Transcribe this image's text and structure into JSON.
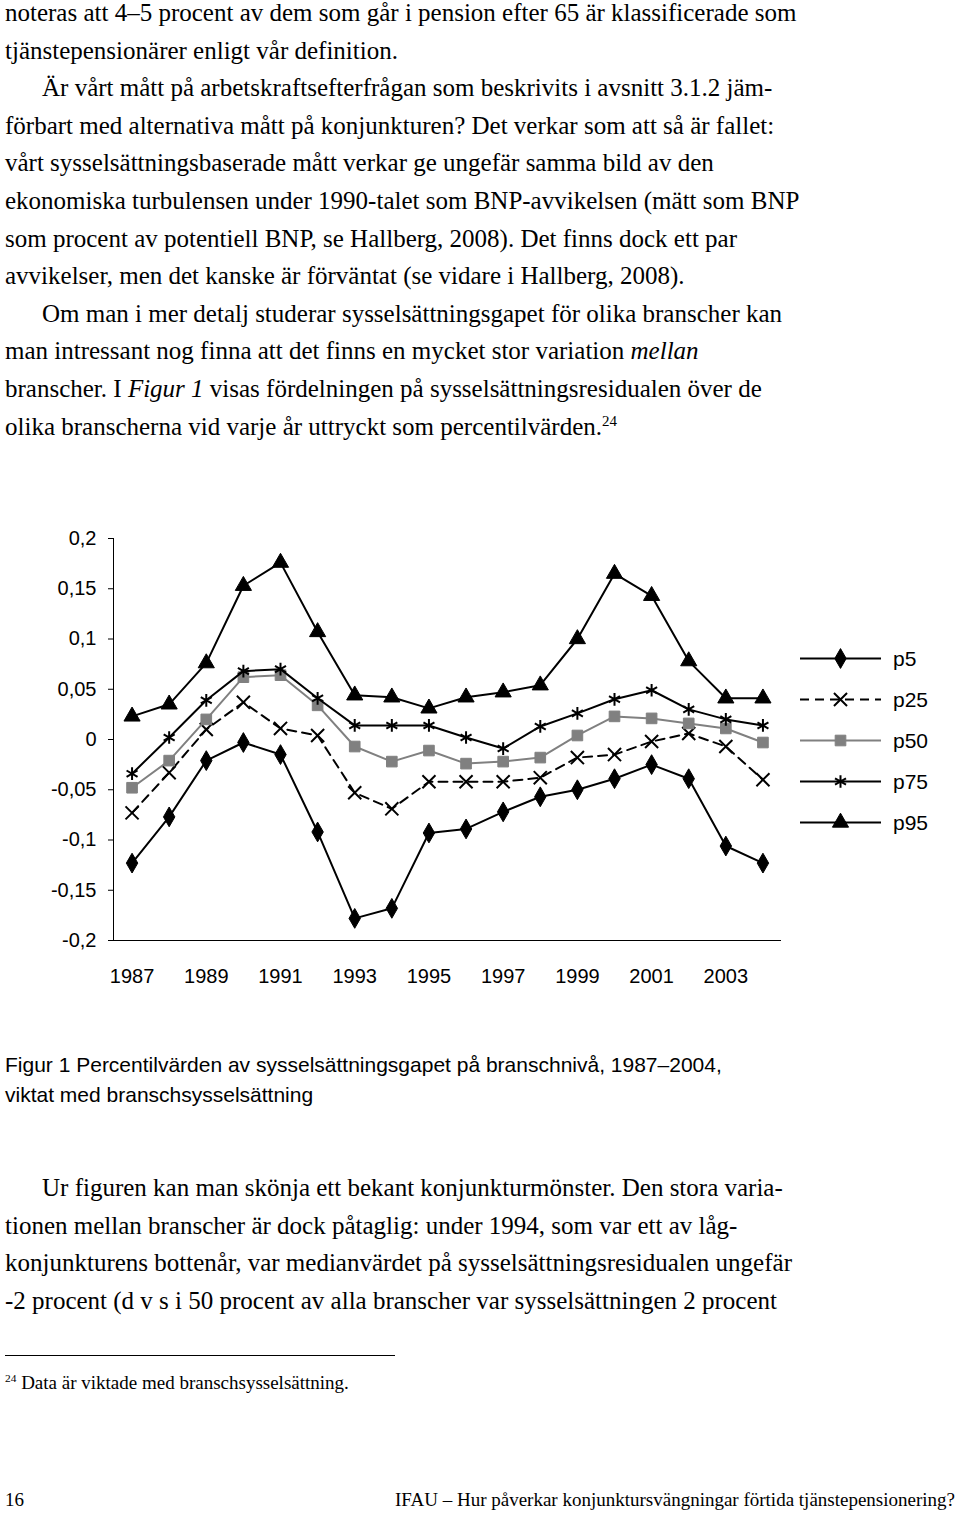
{
  "text_before": [
    [
      "noteras att 4–5 procent av dem som går i pension efter 65 är klassificerade som",
      "tjänstepensionärer enligt vår definition."
    ],
    [
      "Är vårt mått på arbetskraftsefterfrågan som beskrivits i avsnitt 3.1.2 jäm-",
      "förbart med alternativa mått på konjunkturen? Det verkar som att så är fallet:",
      "vårt sysselsättningsbaserade mått verkar ge ungefär samma bild av den",
      "ekonomiska turbulensen under 1990-talet som BNP-avvikelsen (mätt som BNP",
      "som procent av potentiell BNP, se Hallberg, 2008). Det finns dock ett par",
      "avvikelser, men det kanske är förväntat (se vidare i Hallberg, 2008)."
    ],
    [
      "Om man i mer detalj studerar sysselsättningsgapet för olika branscher kan",
      [
        {
          "text": "man intressant nog finna att det finns en mycket stor variation "
        },
        {
          "text": "mellan",
          "style": "italic"
        }
      ],
      [
        {
          "text": "branscher. I "
        },
        {
          "text": "Figur 1",
          "style": "italic"
        },
        {
          "text": " visas fördelningen på sysselsättningsresidualen över de"
        }
      ],
      [
        {
          "text": "olika branscherna vid varje år uttryckt som percentilvärden."
        },
        {
          "text": "24",
          "style": "superscript"
        }
      ]
    ]
  ],
  "chart_data": {
    "type": "line",
    "x": [
      1987,
      1988,
      1989,
      1990,
      1991,
      1992,
      1993,
      1994,
      1995,
      1996,
      1997,
      1998,
      1999,
      2000,
      2001,
      2002,
      2003,
      2004
    ],
    "xlim": [
      1986.5,
      2004.5
    ],
    "xticks": [
      1987,
      1989,
      1991,
      1993,
      1995,
      1997,
      1999,
      2001,
      2003
    ],
    "ylim": [
      -0.2,
      0.2
    ],
    "yticks": [
      {
        "value": -0.2,
        "label": "-0,2"
      },
      {
        "value": -0.15,
        "label": "-0,15"
      },
      {
        "value": -0.1,
        "label": "-0,1"
      },
      {
        "value": -0.05,
        "label": "-0,05"
      },
      0,
      {
        "value": 0.05,
        "label": "0,05"
      },
      {
        "value": 0.1,
        "label": "0,1"
      },
      {
        "value": 0.15,
        "label": "0,15"
      },
      {
        "value": 0.2,
        "label": "0,2"
      }
    ],
    "grid": false,
    "legend": "right",
    "series": [
      {
        "name": "p5",
        "color": "#000000",
        "marker": "diamond",
        "line_style": "solid",
        "values": [
          -0.123,
          -0.077,
          -0.021,
          -0.003,
          -0.015,
          -0.092,
          -0.178,
          -0.168,
          -0.093,
          -0.089,
          -0.072,
          -0.057,
          -0.05,
          -0.039,
          -0.025,
          -0.039,
          -0.106,
          -0.123
        ]
      },
      {
        "name": "p25",
        "color": "#000000",
        "marker": "x",
        "line_style": "dashed",
        "values": [
          -0.073,
          -0.033,
          0.01,
          0.037,
          0.011,
          0.004,
          -0.053,
          -0.069,
          -0.042,
          -0.042,
          -0.042,
          -0.038,
          -0.018,
          -0.015,
          -0.002,
          0.006,
          -0.007,
          -0.04
        ]
      },
      {
        "name": "p50",
        "color": "#808080",
        "marker": "square",
        "line_style": "solid",
        "values": [
          -0.048,
          -0.021,
          0.02,
          0.062,
          0.064,
          0.034,
          -0.007,
          -0.022,
          -0.011,
          -0.024,
          -0.022,
          -0.018,
          0.004,
          0.023,
          0.021,
          0.016,
          0.011,
          -0.003
        ]
      },
      {
        "name": "p75",
        "color": "#000000",
        "marker": "asterisk",
        "line_style": "solid",
        "values": [
          -0.034,
          0.002,
          0.039,
          0.068,
          0.07,
          0.041,
          0.014,
          0.014,
          0.014,
          0.002,
          -0.009,
          0.013,
          0.026,
          0.04,
          0.049,
          0.03,
          0.02,
          0.014
        ]
      },
      {
        "name": "p95",
        "color": "#000000",
        "marker": "triangle",
        "line_style": "solid",
        "values": [
          0.023,
          0.035,
          0.076,
          0.153,
          0.176,
          0.107,
          0.044,
          0.042,
          0.031,
          0.042,
          0.047,
          0.054,
          0.1,
          0.165,
          0.143,
          0.078,
          0.041,
          0.041
        ]
      }
    ]
  },
  "figure_caption": [
    "Figur 1 Percentilvärden av sysselsättningsgapet på branschnivå, 1987–2004,",
    "viktat med branschsysselsättning"
  ],
  "text_after": [
    [
      "Ur figuren kan man skönja ett bekant konjunkturmönster. Den stora varia-",
      "tionen mellan branscher är dock påtaglig: under 1994, som var ett av låg-",
      "konjunkturens bottenår, var medianvärdet på sysselsättningsresidualen ungefär",
      "-2 procent (d v s i 50 procent av alla branscher var sysselsättningen 2 procent"
    ]
  ],
  "footnote": [
    {
      "text": "24",
      "style": "superscript"
    },
    {
      "text": " Data är viktade med branschsysselsättning."
    }
  ],
  "footer": {
    "page_number": "16",
    "running_title": "IFAU – Hur påverkar konjunktursvängningar förtida tjänstepensionering?"
  }
}
